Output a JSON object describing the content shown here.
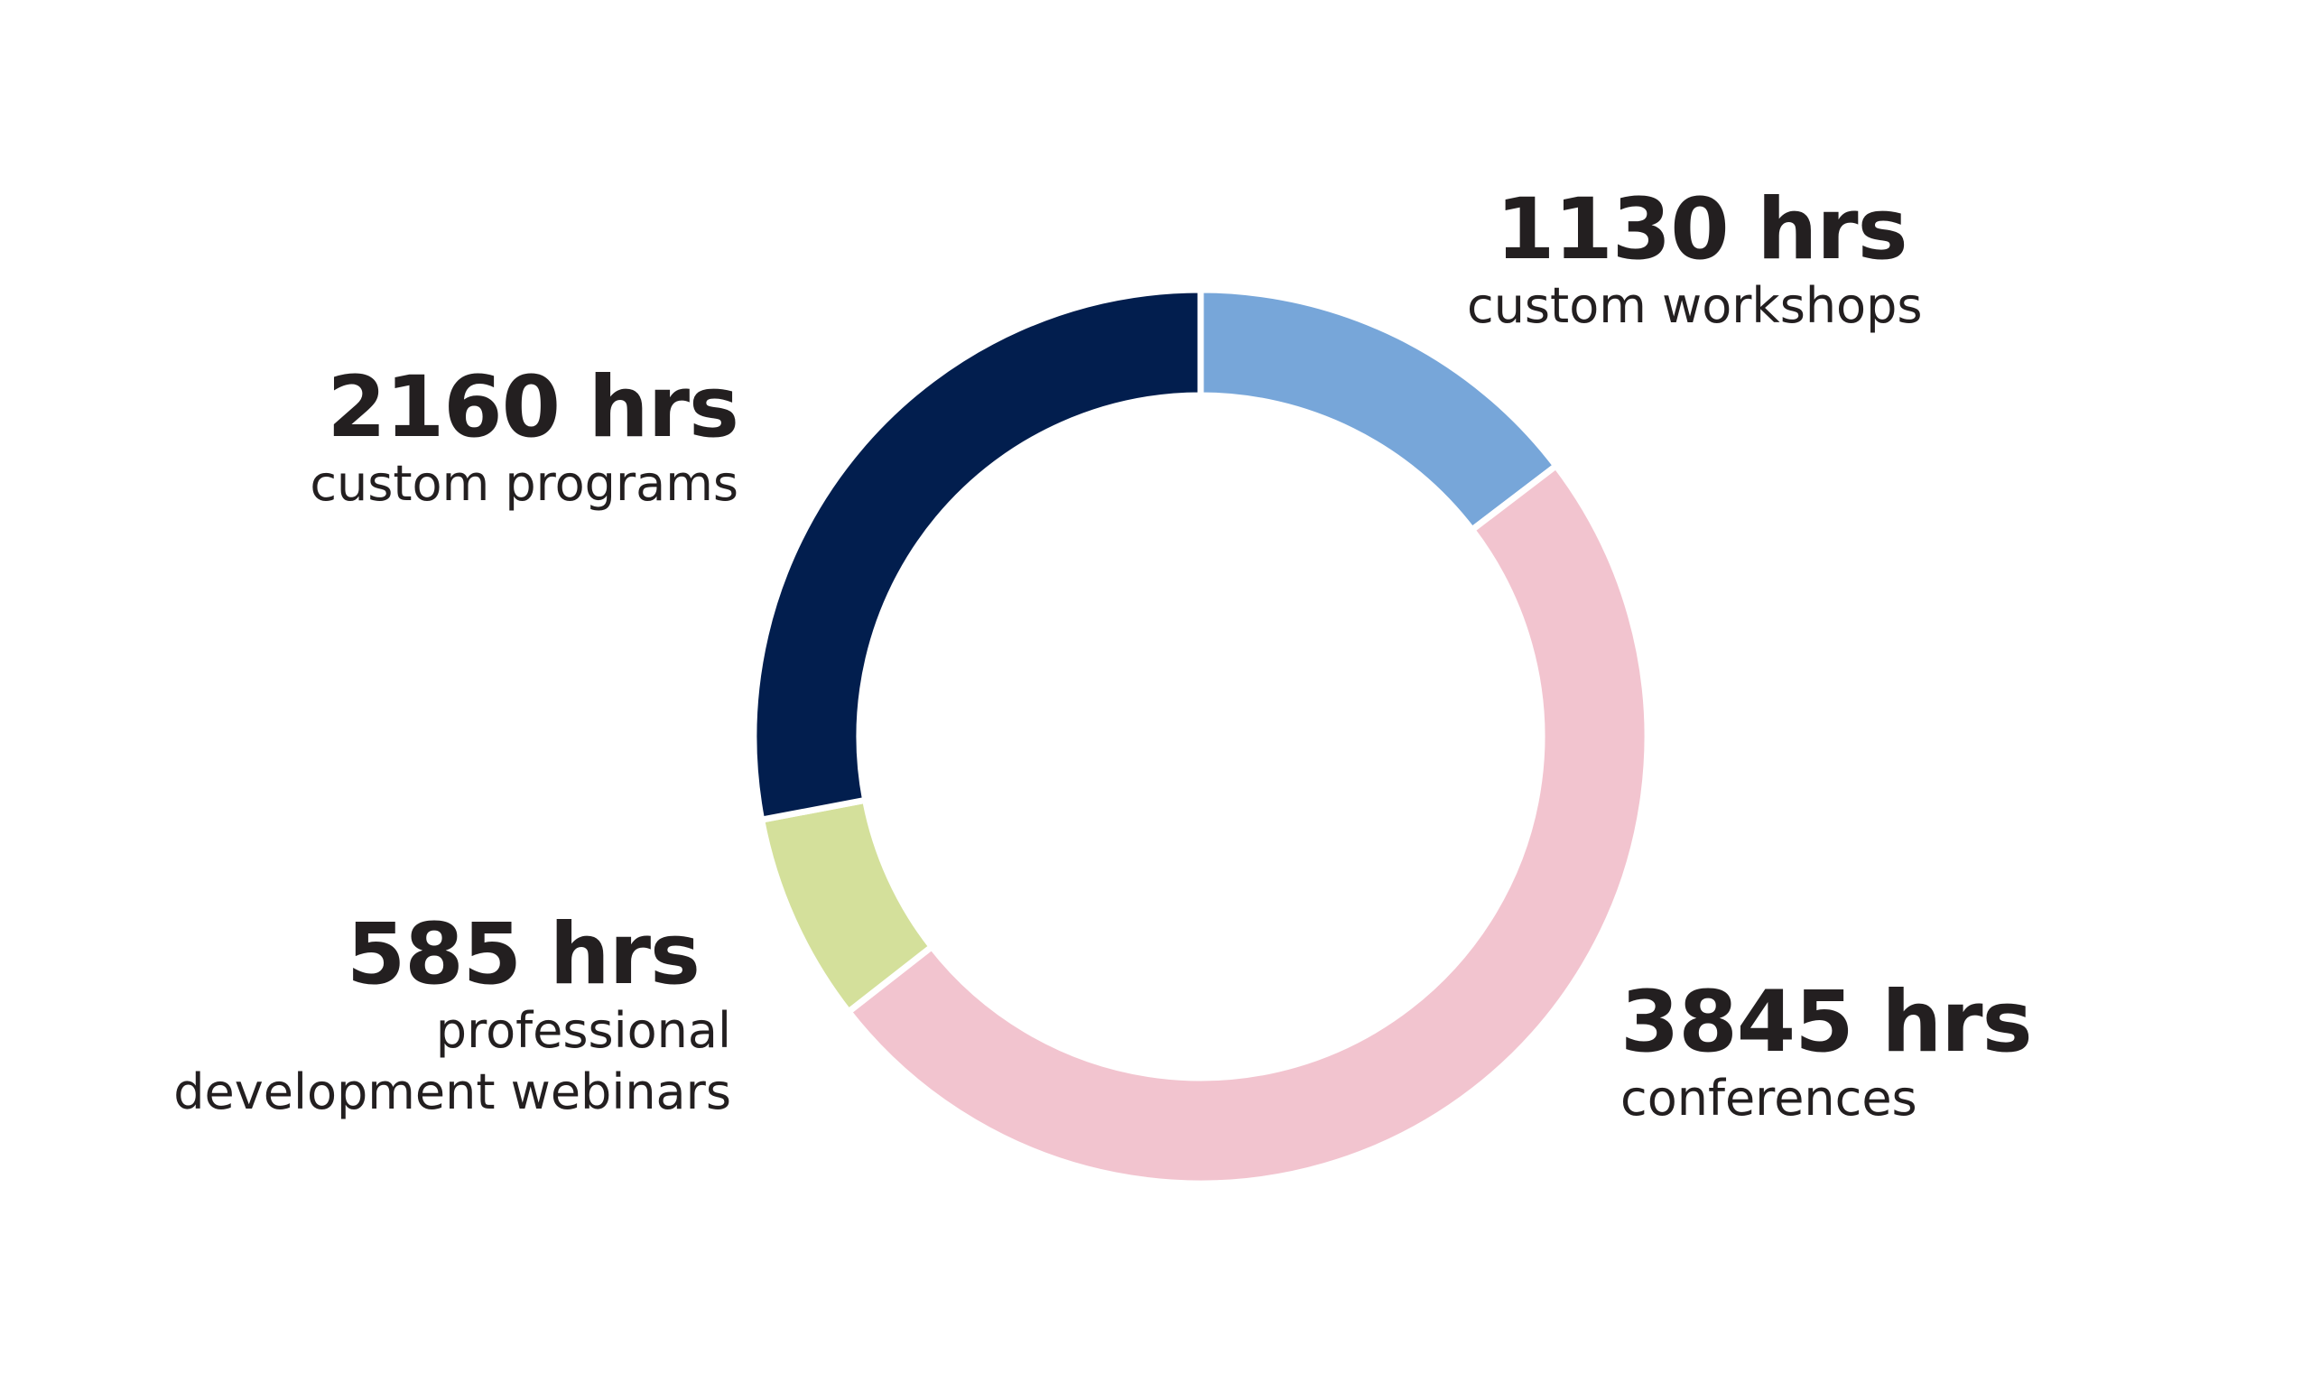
{
  "chart_data": {
    "type": "pie",
    "variant": "donut",
    "unit": "hrs",
    "start": "12 o'clock",
    "direction": "clockwise",
    "slices": [
      {
        "name": "custom workshops",
        "value_label": "1130 hrs",
        "value": 1130,
        "color": "#77a6d9"
      },
      {
        "name": "conferences",
        "value_label": "3845 hrs",
        "value": 3845,
        "color": "#f2c4cf"
      },
      {
        "name": "professional development webinars",
        "value_label": "585 hrs",
        "value": 585,
        "color": "#d4e09b"
      },
      {
        "name": "custom programs",
        "value_label": "2160 hrs",
        "value": 2160,
        "color": "#021e4e"
      }
    ],
    "labels": {
      "workshops": {
        "value": "1130 hrs",
        "category": "custom workshops"
      },
      "conferences": {
        "value": "3845 hrs",
        "category": "conferences"
      },
      "webinars": {
        "value": "585 hrs",
        "category_line1": "professional",
        "category_line2": "development webinars"
      },
      "programs": {
        "value": "2160 hrs",
        "category": "custom programs"
      }
    }
  }
}
